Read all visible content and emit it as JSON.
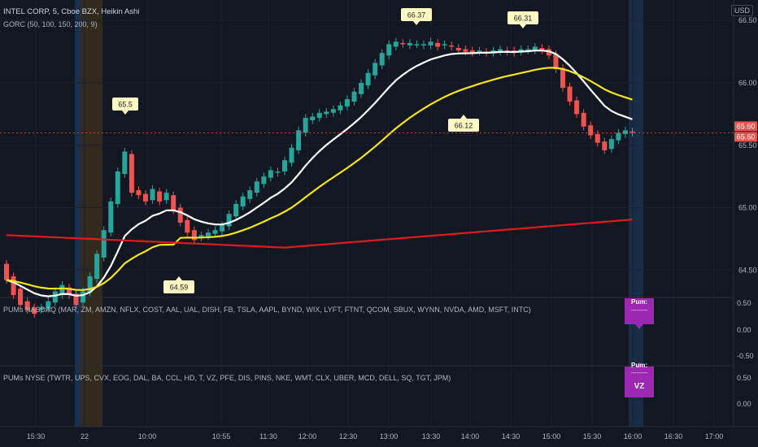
{
  "header": {
    "symbol_line": "INTEL CORP, 5, Cboe BZX, Heikin Ashi",
    "indicator_line": "GORC (50, 100, 150, 200, 9)",
    "currency": "USD"
  },
  "panels": {
    "nasdaq_label": "PUMs NASDAQ (MAR, ZM, AMZN, NFLX, COST, AAL, UAL, DISH, FB, TSLA, AAPL, BYND, WIX, LYFT, FTNT, QCOM, SBUX, WYNN, NVDA, AMD, MSFT, INTC)",
    "nyse_label": "PUMs NYSE (TWTR, UPS, CVX, EOG, DAL, BA, CCL, HD, T, VZ, PFE, DIS, PINS, NKE, WMT, CLX, UBER, MCD, DELL, SQ, TGT, JPM)",
    "nasdaq_badge": "Pum:",
    "nasdaq_badge_sub": "---------",
    "nyse_badge_top": "Pum:",
    "nyse_badge_sub": "---------",
    "nyse_badge_ticker": "VZ"
  },
  "colors": {
    "up": "#26a69a",
    "down": "#ef5350",
    "ma_white": "#ffffff",
    "ma_yellow": "#f5e51b",
    "ma_red": "#e01b1b",
    "badge": "#9c27b0",
    "label_bg": "#fff9c4"
  },
  "chart_data": {
    "type": "candlestick",
    "ylim": [
      64.3,
      66.62
    ],
    "x_ticks": [
      "15:30",
      "22",
      "10:00",
      "10:55",
      "11:30",
      "12:00",
      "12:30",
      "13:00",
      "13:30",
      "14:00",
      "14:30",
      "15:00",
      "15:30",
      "16:00",
      "16:30",
      "17:00"
    ],
    "y_ticks": [
      "66.50",
      "66.00",
      "65.50",
      "65.00",
      "64.50"
    ],
    "last_price": "65.60",
    "last_price_2": "65.60",
    "candles": [
      [
        64.55,
        64.42
      ],
      [
        64.45,
        64.3
      ],
      [
        64.35,
        64.22
      ],
      [
        64.25,
        64.18
      ],
      [
        64.2,
        64.15
      ],
      [
        64.18,
        64.2
      ],
      [
        64.19,
        64.25
      ],
      [
        64.24,
        64.33
      ],
      [
        64.3,
        64.38
      ],
      [
        64.36,
        64.3
      ],
      [
        64.31,
        64.22
      ],
      [
        64.24,
        64.33
      ],
      [
        64.32,
        64.45
      ],
      [
        64.43,
        64.63
      ],
      [
        64.6,
        64.82
      ],
      [
        64.8,
        65.05
      ],
      [
        65.03,
        65.29
      ],
      [
        65.27,
        65.45
      ],
      [
        65.43,
        65.12
      ],
      [
        65.14,
        65.1
      ],
      [
        65.11,
        65.05
      ],
      [
        65.06,
        65.15
      ],
      [
        65.13,
        65.05
      ],
      [
        65.06,
        65.12
      ],
      [
        65.1,
        64.98
      ],
      [
        65.0,
        64.88
      ],
      [
        64.9,
        64.8
      ],
      [
        64.82,
        64.74
      ],
      [
        64.76,
        64.78
      ],
      [
        64.77,
        64.8
      ],
      [
        64.79,
        64.82
      ],
      [
        64.81,
        64.86
      ],
      [
        64.85,
        64.95
      ],
      [
        64.93,
        65.03
      ],
      [
        65.01,
        65.09
      ],
      [
        65.07,
        65.14
      ],
      [
        65.12,
        65.21
      ],
      [
        65.19,
        65.25
      ],
      [
        65.24,
        65.3
      ],
      [
        65.28,
        65.29
      ],
      [
        65.29,
        65.38
      ],
      [
        65.36,
        65.48
      ],
      [
        65.46,
        65.62
      ],
      [
        65.6,
        65.72
      ],
      [
        65.7,
        65.73
      ],
      [
        65.72,
        65.76
      ],
      [
        65.75,
        65.77
      ],
      [
        65.76,
        65.79
      ],
      [
        65.78,
        65.82
      ],
      [
        65.81,
        65.87
      ],
      [
        65.85,
        65.93
      ],
      [
        65.91,
        66.0
      ],
      [
        65.98,
        66.08
      ],
      [
        66.06,
        66.16
      ],
      [
        66.14,
        66.24
      ],
      [
        66.22,
        66.31
      ],
      [
        66.29,
        66.33
      ],
      [
        66.32,
        66.31
      ],
      [
        66.3,
        66.32
      ],
      [
        66.31,
        66.31
      ],
      [
        66.3,
        66.31
      ],
      [
        66.3,
        66.33
      ],
      [
        66.32,
        66.29
      ],
      [
        66.3,
        66.31
      ],
      [
        66.3,
        66.29
      ],
      [
        66.28,
        66.26
      ],
      [
        66.27,
        66.25
      ],
      [
        66.26,
        66.24
      ],
      [
        66.25,
        66.26
      ],
      [
        66.25,
        66.24
      ],
      [
        66.24,
        66.26
      ],
      [
        66.25,
        66.27
      ],
      [
        66.26,
        66.25
      ],
      [
        66.26,
        66.24
      ],
      [
        66.25,
        66.27
      ],
      [
        66.26,
        66.27
      ],
      [
        66.26,
        66.29
      ],
      [
        66.28,
        66.26
      ],
      [
        66.27,
        66.22
      ],
      [
        66.23,
        66.11
      ],
      [
        66.12,
        65.96
      ],
      [
        65.97,
        65.85
      ],
      [
        65.86,
        65.75
      ],
      [
        65.76,
        65.65
      ],
      [
        65.66,
        65.58
      ],
      [
        65.59,
        65.52
      ],
      [
        65.53,
        65.46
      ],
      [
        65.47,
        65.55
      ],
      [
        65.54,
        65.6
      ],
      [
        65.59,
        65.62
      ],
      [
        65.61,
        65.6
      ]
    ],
    "annotations": [
      {
        "value": "66.37",
        "type": "high"
      },
      {
        "value": "66.31",
        "type": "high"
      },
      {
        "value": "65.5",
        "type": "high"
      },
      {
        "value": "66.12",
        "type": "low"
      },
      {
        "value": "64.59",
        "type": "low"
      }
    ],
    "panel1": {
      "y_ticks": [
        "0.50",
        "0.00",
        "-0.50"
      ]
    },
    "panel2": {
      "y_ticks": [
        "0.50",
        "0.00"
      ]
    }
  }
}
